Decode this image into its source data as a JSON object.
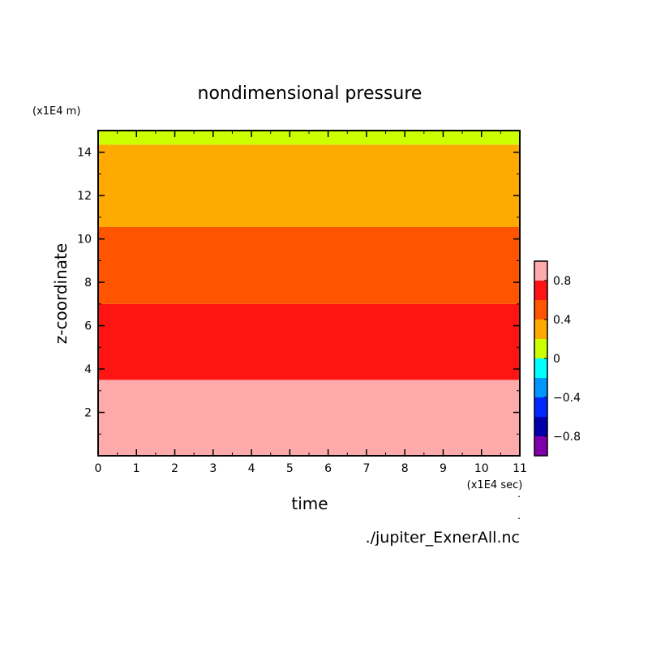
{
  "chart_data": {
    "type": "heatmap",
    "title": "nondimensional pressure",
    "xlabel": "time",
    "ylabel": "z-coordinate",
    "x_unit": "(x1E4 sec)",
    "y_unit": "(x1E4 m)",
    "xlim": [
      0,
      11
    ],
    "ylim": [
      0,
      15
    ],
    "x_ticks": [
      0,
      1,
      2,
      3,
      4,
      5,
      6,
      7,
      8,
      9,
      10,
      11
    ],
    "y_ticks": [
      2,
      4,
      6,
      8,
      10,
      12,
      14
    ],
    "bands": [
      {
        "z_from": 0,
        "z_to": 3.5,
        "level": "0.8 to 1.0",
        "color": "#ffaaaa"
      },
      {
        "z_from": 3.5,
        "z_to": 7.0,
        "level": "0.6 to 0.8",
        "color": "#ff1414"
      },
      {
        "z_from": 7.0,
        "z_to": 10.55,
        "level": "0.4 to 0.6",
        "color": "#ff5500"
      },
      {
        "z_from": 10.55,
        "z_to": 14.35,
        "level": "0.2 to 0.4",
        "color": "#ffaa00"
      },
      {
        "z_from": 14.35,
        "z_to": 15,
        "level": "0 to 0.2",
        "color": "#ccff00"
      }
    ],
    "colorbar": {
      "levels": [
        -1.0,
        -0.8,
        -0.6,
        -0.4,
        -0.2,
        0,
        0.2,
        0.4,
        0.6,
        0.8,
        1.0
      ],
      "colors": [
        "#7f00aa",
        "#0000aa",
        "#0028ff",
        "#0096ff",
        "#00ffff",
        "#ccff00",
        "#ffaa00",
        "#ff5500",
        "#ff1414",
        "#ffaaaa"
      ],
      "tick_values": [
        -0.8,
        -0.4,
        0,
        0.4,
        0.8
      ],
      "tick_labels": [
        "−0.8",
        "−0.4",
        "0",
        "0.4",
        "0.8"
      ]
    },
    "source": "./jupiter_ExnerAll.nc"
  }
}
